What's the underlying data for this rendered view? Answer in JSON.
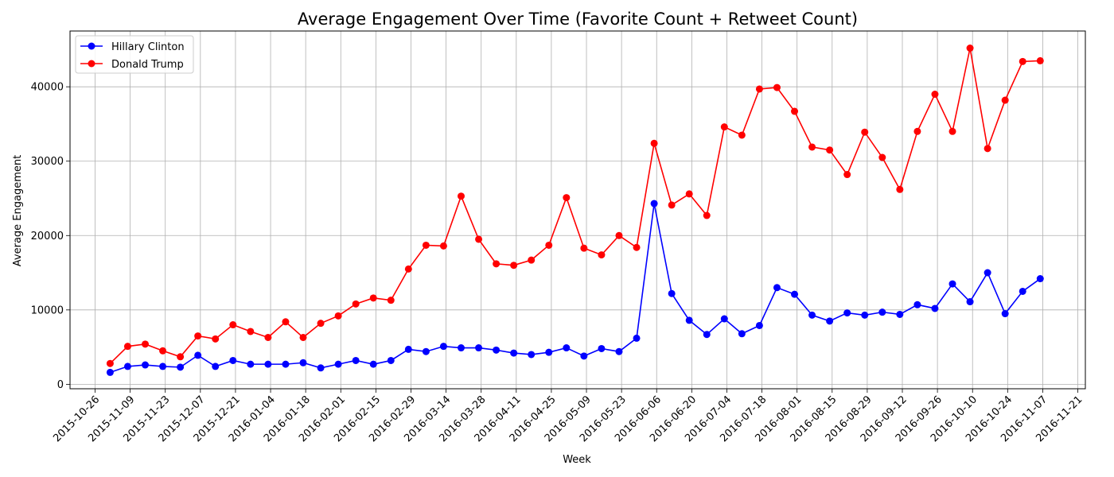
{
  "chart_data": {
    "type": "line",
    "title": "Average Engagement Over Time (Favorite Count + Retweet Count)",
    "xlabel": "Week",
    "ylabel": "Average Engagement",
    "x_ticks": [
      "2015-10-26",
      "2015-11-09",
      "2015-11-23",
      "2015-12-07",
      "2015-12-21",
      "2016-01-04",
      "2016-01-18",
      "2016-02-01",
      "2016-02-15",
      "2016-02-29",
      "2016-03-14",
      "2016-03-28",
      "2016-04-11",
      "2016-04-25",
      "2016-05-09",
      "2016-05-23",
      "2016-06-06",
      "2016-06-20",
      "2016-07-04",
      "2016-07-18",
      "2016-08-01",
      "2016-08-15",
      "2016-08-29",
      "2016-09-12",
      "2016-09-26",
      "2016-10-10",
      "2016-10-24",
      "2016-11-07",
      "2016-11-21"
    ],
    "x": [
      "2015-11-01",
      "2015-11-08",
      "2015-11-15",
      "2015-11-22",
      "2015-11-29",
      "2015-12-06",
      "2015-12-13",
      "2015-12-20",
      "2015-12-27",
      "2016-01-03",
      "2016-01-10",
      "2016-01-17",
      "2016-01-24",
      "2016-01-31",
      "2016-02-07",
      "2016-02-14",
      "2016-02-21",
      "2016-02-28",
      "2016-03-06",
      "2016-03-13",
      "2016-03-20",
      "2016-03-27",
      "2016-04-03",
      "2016-04-10",
      "2016-04-17",
      "2016-04-24",
      "2016-05-01",
      "2016-05-08",
      "2016-05-15",
      "2016-05-22",
      "2016-05-29",
      "2016-06-05",
      "2016-06-12",
      "2016-06-19",
      "2016-06-26",
      "2016-07-03",
      "2016-07-10",
      "2016-07-17",
      "2016-07-24",
      "2016-07-31",
      "2016-08-07",
      "2016-08-14",
      "2016-08-21",
      "2016-08-28",
      "2016-09-04",
      "2016-09-11",
      "2016-09-18",
      "2016-09-25",
      "2016-10-02",
      "2016-10-09",
      "2016-10-16",
      "2016-10-23",
      "2016-10-30",
      "2016-11-06"
    ],
    "yticks": [
      0,
      10000,
      20000,
      30000,
      40000
    ],
    "ylim": [
      -600,
      47500
    ],
    "xlim": [
      "2015-10-16",
      "2016-11-24"
    ],
    "grid": true,
    "legend_position": "top-left",
    "series": [
      {
        "name": "Hillary Clinton",
        "color": "#0000ff",
        "values": [
          1600,
          2400,
          2600,
          2400,
          2300,
          3900,
          2400,
          3200,
          2700,
          2700,
          2700,
          2900,
          2200,
          2700,
          3200,
          2700,
          3200,
          4700,
          4400,
          5100,
          4900,
          4900,
          4600,
          4200,
          4000,
          4300,
          4900,
          3800,
          4800,
          4400,
          6200,
          24300,
          12200,
          8600,
          6700,
          8800,
          6800,
          7900,
          13000,
          12100,
          9300,
          8500,
          9600,
          9300,
          9700,
          9400,
          10700,
          10200,
          13500,
          11100,
          15000,
          9500,
          12500,
          14200
        ]
      },
      {
        "name": "Donald Trump",
        "color": "#ff0000",
        "values": [
          2800,
          5100,
          5400,
          4500,
          3700,
          6500,
          6100,
          8000,
          7100,
          6300,
          8400,
          6300,
          8200,
          9200,
          10800,
          11600,
          11300,
          15500,
          18700,
          18600,
          25300,
          19500,
          16200,
          16000,
          16700,
          18700,
          25100,
          18300,
          17400,
          20000,
          18400,
          32400,
          24100,
          25600,
          22700,
          34600,
          33500,
          39700,
          39900,
          36700,
          31900,
          31500,
          28200,
          33900,
          30500,
          26200,
          34000,
          39000,
          34000,
          45200,
          31700,
          38200,
          43400,
          43500
        ]
      }
    ]
  }
}
